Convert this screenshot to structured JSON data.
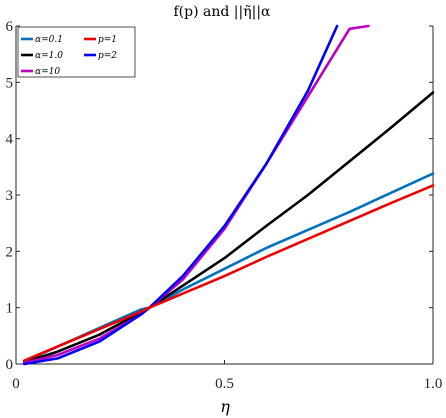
{
  "chart_data": {
    "type": "line",
    "title": "f(p) and ||η̃||α",
    "xlabel": "η",
    "ylabel": "",
    "xlim": [
      0,
      1
    ],
    "ylim": [
      0,
      6
    ],
    "xticks": [
      "0",
      "0.5",
      "1.0"
    ],
    "yticks": [
      "0",
      "1",
      "2",
      "3",
      "4",
      "5",
      "6"
    ],
    "grid": false,
    "legend_position": "top-left",
    "series": [
      {
        "name": "α=0.1",
        "color": "#0072BD",
        "x": [
          0.02,
          0.1,
          0.2,
          0.3,
          0.32,
          0.4,
          0.5,
          0.6,
          0.7,
          0.8,
          0.9,
          1.0
        ],
        "y": [
          0.04,
          0.31,
          0.64,
          0.97,
          1.0,
          1.32,
          1.69,
          2.06,
          2.38,
          2.7,
          3.04,
          3.38
        ]
      },
      {
        "name": "α=1.0",
        "color": "#000000",
        "x": [
          0.02,
          0.1,
          0.2,
          0.3,
          0.32,
          0.4,
          0.5,
          0.6,
          0.7,
          0.8,
          0.9,
          1.0
        ],
        "y": [
          0.03,
          0.22,
          0.52,
          0.92,
          1.0,
          1.39,
          1.88,
          2.45,
          3.0,
          3.6,
          4.2,
          4.82
        ]
      },
      {
        "name": "α=10",
        "color": "#BF00BF",
        "x": [
          0.02,
          0.1,
          0.2,
          0.3,
          0.32,
          0.4,
          0.5,
          0.6,
          0.7,
          0.8,
          0.845
        ],
        "y": [
          0.02,
          0.16,
          0.45,
          0.88,
          1.0,
          1.5,
          2.4,
          3.55,
          4.75,
          5.95,
          6.0
        ]
      },
      {
        "name": "p=1",
        "color": "#EE0000",
        "x": [
          0.02,
          0.1,
          0.2,
          0.3,
          0.32,
          0.4,
          0.5,
          0.6,
          0.7,
          0.8,
          0.9,
          1.0
        ],
        "y": [
          0.06,
          0.31,
          0.62,
          0.93,
          1.0,
          1.25,
          1.56,
          1.9,
          2.22,
          2.54,
          2.86,
          3.17
        ]
      },
      {
        "name": "p=2",
        "color": "#0000FF",
        "x": [
          0.02,
          0.1,
          0.2,
          0.3,
          0.32,
          0.4,
          0.5,
          0.6,
          0.7,
          0.77
        ],
        "y": [
          0.0,
          0.1,
          0.4,
          0.88,
          1.0,
          1.56,
          2.45,
          3.55,
          4.85,
          6.0
        ]
      }
    ]
  }
}
